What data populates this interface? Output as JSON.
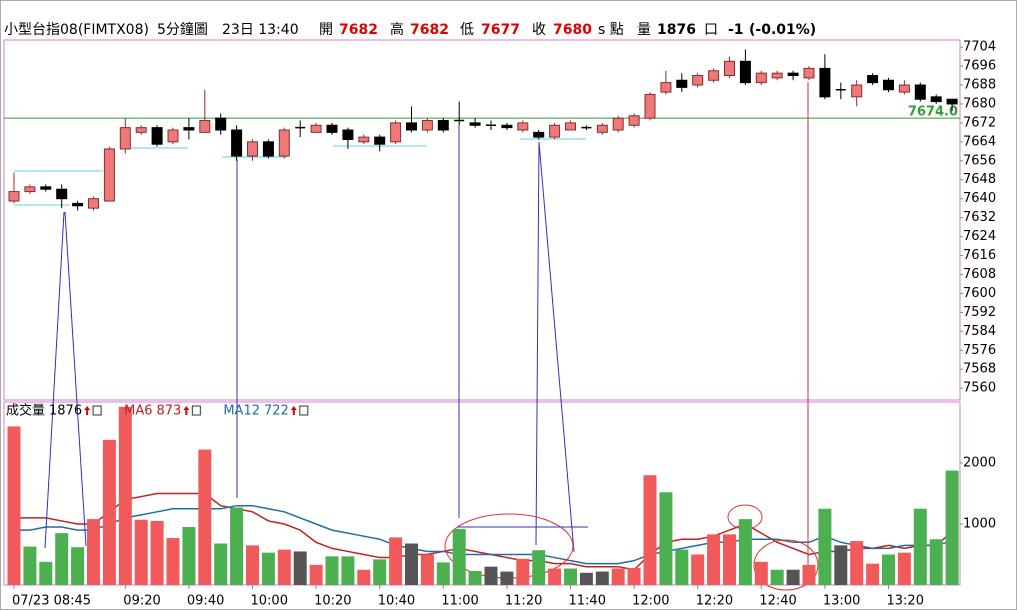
{
  "header": {
    "symbol": "小型台指08(FIMTX08)",
    "interval": "5分鐘圖",
    "time": "23日 13:40",
    "stats": [
      {
        "label": "開",
        "value": 7682
      },
      {
        "label": "高",
        "value": 7682
      },
      {
        "label": "低",
        "value": 7677
      },
      {
        "label": "收",
        "value": 7680
      }
    ],
    "unit": "s 點",
    "volume_label": "量",
    "volume": 1876,
    "volume_unit": "口",
    "change": -1,
    "change_pct": {
      "value": -0.01,
      "label": "(-0.01%)"
    }
  },
  "chart_data": [
    {
      "type": "candlestick",
      "open": [
        7639,
        7643,
        7645,
        7644,
        7638,
        7636,
        7639,
        7661,
        7668,
        7670,
        7664,
        7670,
        7668,
        7674,
        7669,
        7658,
        7664,
        7658,
        7670,
        7668,
        7671,
        7669,
        7664,
        7666,
        7664,
        7672,
        7669,
        7673,
        7673,
        7672,
        7671,
        7671,
        7669,
        7668,
        7666,
        7669,
        7670,
        7668,
        7669,
        7671,
        7674,
        7685,
        7690,
        7688,
        7690,
        7692,
        7698,
        7689,
        7691,
        7693,
        7691,
        7695,
        7686,
        7683,
        7692,
        7690,
        7685,
        7688,
        7683,
        7682
      ],
      "high": [
        7651,
        7646,
        7646,
        7646,
        7639,
        7641,
        7662,
        7674,
        7671,
        7671,
        7670,
        7674,
        7686,
        7676,
        7671,
        7665,
        7665,
        7670,
        7673,
        7672,
        7672,
        7670,
        7667,
        7667,
        7673,
        7679,
        7674,
        7674,
        7681,
        7674,
        7673,
        7672,
        7673,
        7669,
        7672,
        7673,
        7671,
        7672,
        7675,
        7676,
        7685,
        7694,
        7693,
        7693,
        7695,
        7700,
        7703,
        7694,
        7694,
        7694,
        7696,
        7701,
        7689,
        7690,
        7693,
        7691,
        7690,
        7689,
        7684,
        7682
      ],
      "low": [
        7638,
        7642,
        7643,
        7636,
        7635,
        7635,
        7639,
        7659,
        7667,
        7662,
        7663,
        7665,
        7668,
        7667,
        7656,
        7656,
        7657,
        7657,
        7666,
        7668,
        7667,
        7661,
        7663,
        7660,
        7663,
        7668,
        7668,
        7668,
        7671,
        7670,
        7669,
        7669,
        7668,
        7665,
        7665,
        7669,
        7669,
        7667,
        7668,
        7670,
        7673,
        7684,
        7685,
        7687,
        7689,
        7691,
        7688,
        7688,
        7690,
        7690,
        7690,
        7682,
        7682,
        7679,
        7688,
        7685,
        7684,
        7681,
        7680,
        7677
      ],
      "close": [
        7643,
        7645,
        7644,
        7640,
        7637,
        7640,
        7661,
        7670,
        7670,
        7663,
        7669,
        7669,
        7673,
        7669,
        7658,
        7664,
        7658,
        7669,
        7670,
        7671,
        7668,
        7665,
        7666,
        7663,
        7672,
        7669,
        7673,
        7669,
        7673,
        7671,
        7671,
        7670,
        7672,
        7666,
        7671,
        7672,
        7670,
        7671,
        7674,
        7675,
        7684,
        7689,
        7687,
        7692,
        7694,
        7698,
        7689,
        7693,
        7693,
        7692,
        7695,
        7683,
        7686,
        7688,
        7689,
        7686,
        7688,
        7682,
        7681,
        7680
      ],
      "up_color": "#f07878",
      "down_color": "#000000",
      "ylim": [
        7555,
        7707
      ],
      "yticks": [
        7704,
        7696,
        7688,
        7680,
        7672,
        7664,
        7656,
        7648,
        7640,
        7632,
        7624,
        7616,
        7608,
        7600,
        7592,
        7584,
        7576,
        7568,
        7560
      ],
      "reference_line": {
        "value": 7674,
        "label": "7674.0",
        "color": "#3a9a3a"
      }
    },
    {
      "type": "bar",
      "categories": [
        "07/23 08:45",
        null,
        null,
        null,
        null,
        null,
        null,
        "09:20",
        null,
        null,
        null,
        "09:40",
        null,
        null,
        null,
        "10:00",
        null,
        null,
        null,
        "10:20",
        null,
        null,
        null,
        "10:40",
        null,
        null,
        null,
        "11:00",
        null,
        null,
        null,
        "11:20",
        null,
        null,
        null,
        "11:40",
        null,
        null,
        null,
        "12:00",
        null,
        null,
        null,
        "12:20",
        null,
        null,
        null,
        "12:40",
        null,
        null,
        null,
        "13:00",
        null,
        null,
        null,
        "13:20",
        null,
        null,
        null,
        null
      ],
      "values": [
        2600,
        630,
        380,
        850,
        620,
        1080,
        2380,
        2920,
        1070,
        1050,
        770,
        950,
        2220,
        680,
        1270,
        650,
        530,
        580,
        550,
        330,
        470,
        470,
        250,
        420,
        780,
        680,
        500,
        370,
        920,
        230,
        300,
        220,
        430,
        570,
        270,
        270,
        200,
        220,
        270,
        280,
        1800,
        1520,
        580,
        500,
        830,
        830,
        1080,
        380,
        250,
        250,
        330,
        1250,
        650,
        720,
        350,
        500,
        530,
        1250,
        750,
        1876
      ],
      "colors": [
        "#f05a5a",
        "#4caf50",
        "#4caf50",
        "#4caf50",
        "#4caf50",
        "#f05a5a",
        "#f05a5a",
        "#f05a5a",
        "#f05a5a",
        "#f05a5a",
        "#f05a5a",
        "#4caf50",
        "#f05a5a",
        "#4caf50",
        "#4caf50",
        "#f05a5a",
        "#4caf50",
        "#f05a5a",
        "#555555",
        "#f05a5a",
        "#4caf50",
        "#4caf50",
        "#f05a5a",
        "#4caf50",
        "#f05a5a",
        "#555555",
        "#f05a5a",
        "#4caf50",
        "#4caf50",
        "#4caf50",
        "#555555",
        "#555555",
        "#f05a5a",
        "#4caf50",
        "#f05a5a",
        "#4caf50",
        "#555555",
        "#555555",
        "#f05a5a",
        "#f05a5a",
        "#f05a5a",
        "#4caf50",
        "#4caf50",
        "#f05a5a",
        "#f05a5a",
        "#f05a5a",
        "#4caf50",
        "#f05a5a",
        "#4caf50",
        "#555555",
        "#f05a5a",
        "#4caf50",
        "#555555",
        "#f05a5a",
        "#f05a5a",
        "#4caf50",
        "#f05a5a",
        "#4caf50",
        "#4caf50",
        "#4caf50"
      ],
      "legend": [
        {
          "name": "成交量",
          "value": 1876,
          "color": "#000000"
        },
        {
          "name": "MA6",
          "value": 873,
          "color": "#c02020"
        },
        {
          "name": "MA12",
          "value": 722,
          "color": "#1f6f9f"
        }
      ],
      "series": [
        {
          "name": "MA6",
          "color": "#c02020",
          "values": [
            1100,
            1100,
            1100,
            1050,
            1000,
            1000,
            1200,
            1400,
            1450,
            1500,
            1500,
            1500,
            1500,
            1300,
            1250,
            1200,
            1050,
            1000,
            900,
            700,
            600,
            550,
            500,
            450,
            450,
            500,
            500,
            550,
            600,
            550,
            500,
            450,
            400,
            400,
            350,
            350,
            300,
            300,
            300,
            250,
            500,
            700,
            750,
            750,
            800,
            900,
            1000,
            850,
            700,
            600,
            500,
            550,
            550,
            600,
            600,
            650,
            600,
            650,
            650,
            873
          ]
        },
        {
          "name": "MA12",
          "color": "#1f6f9f",
          "values": [
            900,
            900,
            950,
            950,
            900,
            900,
            1000,
            1100,
            1150,
            1200,
            1250,
            1250,
            1250,
            1250,
            1300,
            1300,
            1250,
            1200,
            1100,
            1000,
            900,
            850,
            800,
            750,
            650,
            600,
            550,
            550,
            500,
            500,
            500,
            500,
            500,
            500,
            450,
            400,
            350,
            350,
            350,
            400,
            500,
            550,
            600,
            650,
            700,
            700,
            750,
            750,
            750,
            700,
            700,
            800,
            700,
            650,
            600,
            600,
            650,
            650,
            650,
            722
          ]
        }
      ],
      "ylim": [
        0,
        3000
      ],
      "yticks": [
        1000,
        2000
      ]
    }
  ]
}
